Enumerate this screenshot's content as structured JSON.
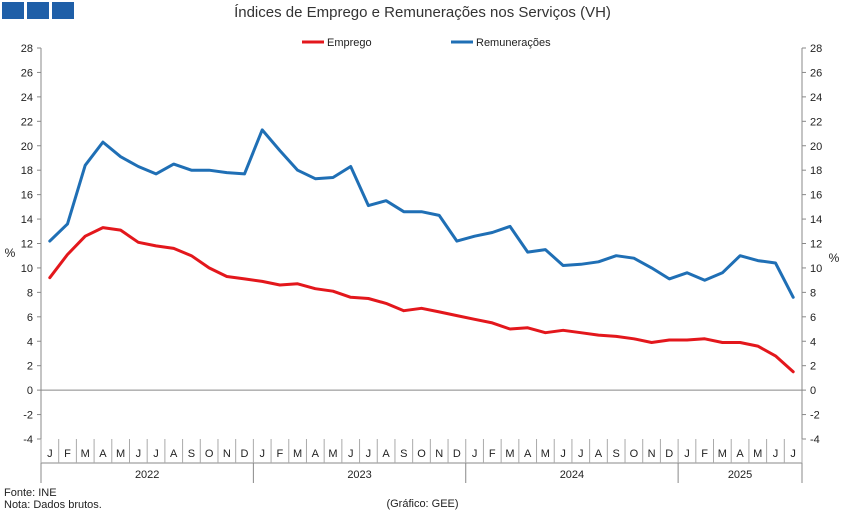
{
  "header": {
    "title": "Índices de Emprego e Remunerações nos Serviços (VH)"
  },
  "footer": {
    "source": "Fonte: INE",
    "note": "Nota: Dados brutos.",
    "credit": "(Gráfico: GEE)"
  },
  "chart_data": {
    "type": "line",
    "title": "Índices de Emprego e Remunerações nos Serviços (VH)",
    "ylabel_left": "%",
    "ylabel_right": "%",
    "ylim": [
      -4,
      28
    ],
    "yticks": [
      -4,
      -2,
      0,
      2,
      4,
      6,
      8,
      10,
      12,
      14,
      16,
      18,
      20,
      22,
      24,
      26,
      28
    ],
    "legend_position": "top-center",
    "grid": false,
    "x": [
      "J",
      "F",
      "M",
      "A",
      "M",
      "J",
      "J",
      "A",
      "S",
      "O",
      "N",
      "D",
      "J",
      "F",
      "M",
      "A",
      "M",
      "J",
      "J",
      "A",
      "S",
      "O",
      "N",
      "D",
      "J",
      "F",
      "M",
      "A",
      "M",
      "J",
      "J",
      "A",
      "S",
      "O",
      "N",
      "D",
      "J",
      "F",
      "M",
      "A",
      "M",
      "J",
      "J"
    ],
    "years": [
      {
        "label": "2022",
        "start": 0,
        "count": 12
      },
      {
        "label": "2023",
        "start": 12,
        "count": 12
      },
      {
        "label": "2024",
        "start": 24,
        "count": 12
      },
      {
        "label": "2025",
        "start": 36,
        "count": 7
      }
    ],
    "series": [
      {
        "name": "Emprego",
        "color": "#e3171c",
        "values": [
          9.2,
          11.1,
          12.6,
          13.3,
          13.1,
          12.1,
          11.8,
          11.6,
          11.0,
          10.0,
          9.3,
          9.1,
          8.9,
          8.6,
          8.7,
          8.3,
          8.1,
          7.6,
          7.5,
          7.1,
          6.5,
          6.7,
          6.4,
          6.1,
          5.8,
          5.5,
          5.0,
          5.1,
          4.7,
          4.9,
          4.7,
          4.5,
          4.4,
          4.2,
          3.9,
          4.1,
          4.1,
          4.2,
          3.9,
          3.9,
          3.6,
          2.8,
          1.5
        ]
      },
      {
        "name": "Remunerações",
        "color": "#1f6fb5",
        "values": [
          12.2,
          13.6,
          18.4,
          20.3,
          19.1,
          18.3,
          17.7,
          18.5,
          18.0,
          18.0,
          17.8,
          17.7,
          21.3,
          19.6,
          18.0,
          17.3,
          17.4,
          18.3,
          15.1,
          15.5,
          14.6,
          14.6,
          14.3,
          12.2,
          12.6,
          12.9,
          13.4,
          11.3,
          11.5,
          10.2,
          10.3,
          10.5,
          11.0,
          10.8,
          10.0,
          9.1,
          9.6,
          9.0,
          9.6,
          11.0,
          10.6,
          10.4,
          7.6
        ]
      }
    ]
  }
}
